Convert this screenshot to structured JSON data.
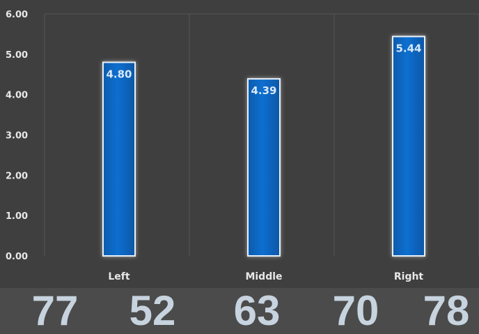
{
  "chart_data": {
    "type": "bar",
    "categories": [
      "Left",
      "Middle",
      "Right"
    ],
    "values": [
      4.8,
      4.39,
      5.44
    ],
    "data_labels": [
      "4.80",
      "4.39",
      "5.44"
    ],
    "title": "",
    "xlabel": "",
    "ylabel": "",
    "ylim": [
      0,
      6
    ],
    "yticks": [
      "0.00",
      "1.00",
      "2.00",
      "3.00",
      "4.00",
      "5.00",
      "6.00"
    ],
    "grid": "vertical gridlines between categories",
    "legend": "none",
    "bar_color": "#0a6fd0",
    "background_color": "#3f3f3f"
  },
  "footer": {
    "numbers": [
      "77",
      "52",
      "63",
      "70",
      "78"
    ]
  }
}
